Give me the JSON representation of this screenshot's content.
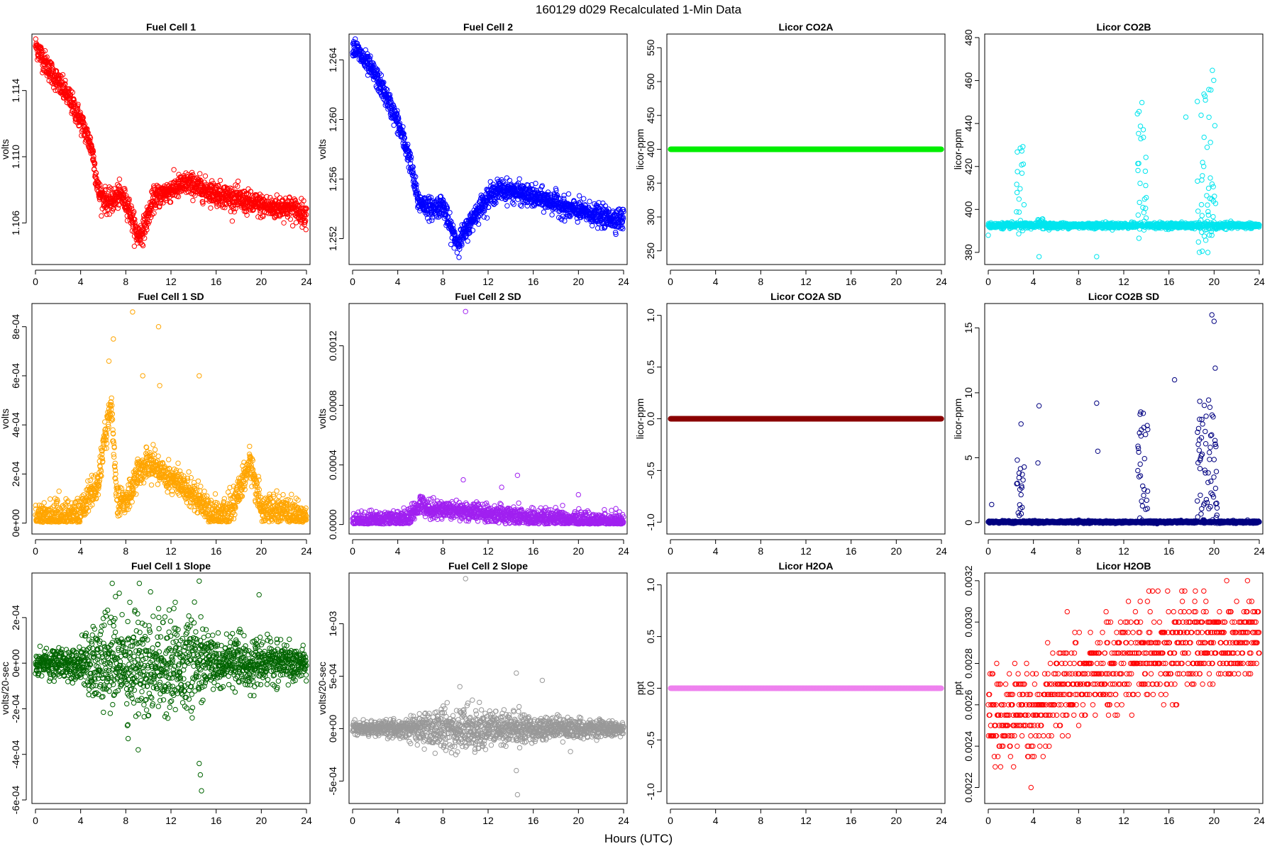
{
  "figure": {
    "title": "160129   d029   Recalculated 1-Min Data",
    "xlabel": "Hours (UTC)"
  },
  "chart_data": [
    {
      "id": "fc1",
      "type": "scatter",
      "title": "Fuel Cell 1",
      "ylabel": "volts",
      "color": "#ff0000",
      "xlim": [
        0,
        24
      ],
      "ylim": [
        1.1037,
        1.1172
      ],
      "xticks": [
        0,
        4,
        8,
        12,
        16,
        20,
        24
      ],
      "xtick_labels": [
        "0",
        "4",
        "8",
        "12",
        "16",
        "20",
        "24"
      ],
      "yticks": [
        1.106,
        1.11,
        1.114
      ],
      "ytick_labels": [
        "1.106",
        "1.110",
        "1.114"
      ],
      "series": {
        "kind": "trend",
        "noise": 0.00035,
        "n": 1440,
        "knots": [
          [
            0,
            1.1168
          ],
          [
            1,
            1.1155
          ],
          [
            2,
            1.1145
          ],
          [
            3,
            1.1135
          ],
          [
            4,
            1.1122
          ],
          [
            5,
            1.1105
          ],
          [
            5.6,
            1.1078
          ],
          [
            6.5,
            1.1072
          ],
          [
            7.5,
            1.1077
          ],
          [
            8.2,
            1.1071
          ],
          [
            9,
            1.1052
          ],
          [
            9.5,
            1.1055
          ],
          [
            10.5,
            1.1075
          ],
          [
            12,
            1.108
          ],
          [
            13.5,
            1.1084
          ],
          [
            15,
            1.108
          ],
          [
            16,
            1.1078
          ],
          [
            17.5,
            1.1075
          ],
          [
            19,
            1.1072
          ],
          [
            21,
            1.1069
          ],
          [
            22,
            1.107
          ],
          [
            23,
            1.1068
          ],
          [
            24,
            1.1065
          ]
        ]
      }
    },
    {
      "id": "fc2",
      "type": "scatter",
      "title": "Fuel Cell 2",
      "ylabel": "volts",
      "color": "#0000ff",
      "xlim": [
        0,
        24
      ],
      "ylim": [
        1.2505,
        1.2655
      ],
      "xticks": [
        0,
        4,
        8,
        12,
        16,
        20,
        24
      ],
      "xtick_labels": [
        "0",
        "4",
        "8",
        "12",
        "16",
        "20",
        "24"
      ],
      "yticks": [
        1.252,
        1.256,
        1.26,
        1.264
      ],
      "ytick_labels": [
        "1.252",
        "1.256",
        "1.260",
        "1.264"
      ],
      "series": {
        "kind": "trend",
        "noise": 0.00035,
        "n": 1440,
        "knots": [
          [
            0,
            1.265
          ],
          [
            1,
            1.264
          ],
          [
            2,
            1.263
          ],
          [
            3,
            1.2615
          ],
          [
            4,
            1.2598
          ],
          [
            5,
            1.2575
          ],
          [
            5.8,
            1.2545
          ],
          [
            7,
            1.254
          ],
          [
            8,
            1.2543
          ],
          [
            8.5,
            1.253
          ],
          [
            9.3,
            1.2517
          ],
          [
            10,
            1.2525
          ],
          [
            11,
            1.2538
          ],
          [
            12,
            1.2548
          ],
          [
            13,
            1.2553
          ],
          [
            14,
            1.2552
          ],
          [
            15,
            1.255
          ],
          [
            16,
            1.2548
          ],
          [
            17,
            1.2546
          ],
          [
            18,
            1.2544
          ],
          [
            19,
            1.254
          ],
          [
            21,
            1.2537
          ],
          [
            22.5,
            1.2534
          ],
          [
            24,
            1.2533
          ]
        ]
      }
    },
    {
      "id": "co2a",
      "type": "scatter",
      "title": "Licor CO2A",
      "ylabel": "licor-ppm",
      "color": "#00ee00",
      "xlim": [
        0,
        24
      ],
      "ylim": [
        235,
        565
      ],
      "xticks": [
        0,
        4,
        8,
        12,
        16,
        20,
        24
      ],
      "xtick_labels": [
        "0",
        "4",
        "8",
        "12",
        "16",
        "20",
        "24"
      ],
      "yticks": [
        250,
        300,
        350,
        400,
        450,
        500,
        550
      ],
      "ytick_labels": [
        "250",
        "300",
        "350",
        "400",
        "450",
        "500",
        "550"
      ],
      "series": {
        "kind": "flat",
        "value": 400,
        "n": 1440
      }
    },
    {
      "id": "co2b",
      "type": "scatter",
      "title": "Licor CO2B",
      "ylabel": "licor-ppm",
      "color": "#00e5ee",
      "xlim": [
        0,
        24
      ],
      "ylim": [
        376,
        480
      ],
      "xticks": [
        0,
        4,
        8,
        12,
        16,
        20,
        24
      ],
      "xtick_labels": [
        "0",
        "4",
        "8",
        "12",
        "16",
        "20",
        "24"
      ],
      "yticks": [
        380,
        400,
        420,
        440,
        460,
        480
      ],
      "ytick_labels": [
        "380",
        "400",
        "420",
        "440",
        "460",
        "480"
      ],
      "series": {
        "kind": "baseline_spikes",
        "base": 392.5,
        "noise": 0.6,
        "n": 1440,
        "sign": "both",
        "spikes": [
          [
            2.5,
            3.2,
            430
          ],
          [
            4.4,
            4.9,
            396
          ],
          [
            13.2,
            14,
            452
          ],
          [
            18.5,
            20.2,
            466
          ]
        ],
        "outliers": [
          [
            0,
            388
          ],
          [
            4.5,
            378
          ],
          [
            9.6,
            378
          ],
          [
            19.8,
            388
          ],
          [
            17.5,
            443
          ]
        ]
      }
    },
    {
      "id": "fc1sd",
      "type": "scatter",
      "title": "Fuel Cell 1 SD",
      "ylabel": "volts",
      "color": "#ffa500",
      "xlim": [
        0,
        24
      ],
      "ylim": [
        -3e-05,
        0.00088
      ],
      "xticks": [
        0,
        4,
        8,
        12,
        16,
        20,
        24
      ],
      "xtick_labels": [
        "0",
        "4",
        "8",
        "12",
        "16",
        "20",
        "24"
      ],
      "yticks": [
        0,
        0.0002,
        0.0004,
        0.0006,
        0.0008
      ],
      "ytick_labels": [
        "0e+00",
        "2e-04",
        "4e-04",
        "6e-04",
        "8e-04"
      ],
      "series": {
        "kind": "trend",
        "noise": 3e-05,
        "n": 1440,
        "positive": true,
        "knots": [
          [
            0,
            2e-05
          ],
          [
            4,
            4e-05
          ],
          [
            4.5,
            0.0001
          ],
          [
            5.5,
            0.00015
          ],
          [
            6,
            0.0003
          ],
          [
            6.7,
            0.0005
          ],
          [
            7.2,
            0.0001
          ],
          [
            8,
            8e-05
          ],
          [
            9,
            0.0002
          ],
          [
            10,
            0.00025
          ],
          [
            11.5,
            0.0002
          ],
          [
            13,
            0.00015
          ],
          [
            14.5,
            0.0001
          ],
          [
            15.5,
            4e-05
          ],
          [
            17,
            3e-05
          ],
          [
            18,
            0.00012
          ],
          [
            19,
            0.00025
          ],
          [
            20,
            6e-05
          ],
          [
            22,
            4e-05
          ],
          [
            24,
            2e-05
          ]
        ],
        "outliers": [
          [
            6.5,
            0.00066
          ],
          [
            6.9,
            0.00075
          ],
          [
            8.6,
            0.00086
          ],
          [
            10.9,
            0.0008
          ],
          [
            14.5,
            0.0006
          ],
          [
            9.5,
            0.0006
          ],
          [
            11,
            0.00056
          ]
        ]
      }
    },
    {
      "id": "fc2sd",
      "type": "scatter",
      "title": "Fuel Cell 2 SD",
      "ylabel": "volts",
      "color": "#a020f0",
      "xlim": [
        0,
        24
      ],
      "ylim": [
        -4e-05,
        0.00146
      ],
      "xticks": [
        0,
        4,
        8,
        12,
        16,
        20,
        24
      ],
      "xtick_labels": [
        "0",
        "4",
        "8",
        "12",
        "16",
        "20",
        "24"
      ],
      "yticks": [
        0,
        0.0004,
        0.0008,
        0.0012
      ],
      "ytick_labels": [
        "0.0000",
        "0.0004",
        "0.0008",
        "0.0012"
      ],
      "series": {
        "kind": "trend",
        "noise": 3e-05,
        "n": 1440,
        "positive": true,
        "knots": [
          [
            0,
            2e-05
          ],
          [
            5,
            4e-05
          ],
          [
            6,
            0.00014
          ],
          [
            7,
            0.0001
          ],
          [
            9,
            0.0001
          ],
          [
            10,
            9e-05
          ],
          [
            12,
            7e-05
          ],
          [
            14,
            6e-05
          ],
          [
            16,
            4e-05
          ],
          [
            20,
            3e-05
          ],
          [
            24,
            2e-05
          ]
        ],
        "outliers": [
          [
            10,
            0.00143
          ],
          [
            9.8,
            0.0003
          ],
          [
            14.6,
            0.00033
          ],
          [
            13.2,
            0.00025
          ],
          [
            20,
            0.0002
          ]
        ]
      }
    },
    {
      "id": "co2asd",
      "type": "scatter",
      "title": "Licor CO2A SD",
      "ylabel": "licor-ppm",
      "color": "#8b0000",
      "xlim": [
        0,
        24
      ],
      "ylim": [
        -1.08,
        1.08
      ],
      "xticks": [
        0,
        4,
        8,
        12,
        16,
        20,
        24
      ],
      "xtick_labels": [
        "0",
        "4",
        "8",
        "12",
        "16",
        "20",
        "24"
      ],
      "yticks": [
        -1.0,
        -0.5,
        0.0,
        0.5,
        1.0
      ],
      "ytick_labels": [
        "-1.0",
        "-0.5",
        "0.0",
        "0.5",
        "1.0"
      ],
      "series": {
        "kind": "flat",
        "value": 0,
        "n": 1440
      }
    },
    {
      "id": "co2bsd",
      "type": "scatter",
      "title": "Licor CO2B SD",
      "ylabel": "licor-ppm",
      "color": "#000080",
      "xlim": [
        0,
        24
      ],
      "ylim": [
        -0.6,
        16.6
      ],
      "xticks": [
        0,
        4,
        8,
        12,
        16,
        20,
        24
      ],
      "xtick_labels": [
        "0",
        "4",
        "8",
        "12",
        "16",
        "20",
        "24"
      ],
      "yticks": [
        0,
        5,
        10,
        15
      ],
      "ytick_labels": [
        "0",
        "5",
        "10",
        "15"
      ],
      "series": {
        "kind": "baseline_spikes",
        "base": 0.05,
        "noise": 0.04,
        "n": 1440,
        "sign": "up",
        "spikes": [
          [
            2.5,
            3.2,
            5
          ],
          [
            13.2,
            14.2,
            9
          ],
          [
            18.5,
            20.3,
            10
          ]
        ],
        "outliers": [
          [
            2.9,
            7.6
          ],
          [
            4.5,
            9
          ],
          [
            4.4,
            4.6
          ],
          [
            9.6,
            9.2
          ],
          [
            9.7,
            5.5
          ],
          [
            16.5,
            11
          ],
          [
            19.8,
            16
          ],
          [
            20,
            15.5
          ],
          [
            20.1,
            11.9
          ],
          [
            0.3,
            1.4
          ]
        ]
      }
    },
    {
      "id": "fc1slope",
      "type": "scatter",
      "title": "Fuel Cell 1 Slope",
      "ylabel": "volts/20-sec",
      "color": "#006400",
      "xlim": [
        0,
        24
      ],
      "ylim": [
        -0.0006,
        0.00038
      ],
      "xticks": [
        0,
        4,
        8,
        12,
        16,
        20,
        24
      ],
      "xtick_labels": [
        "0",
        "4",
        "8",
        "12",
        "16",
        "20",
        "24"
      ],
      "yticks": [
        -0.0006,
        -0.0004,
        -0.0002,
        0,
        0.0002
      ],
      "ytick_labels": [
        "-6e-04",
        "-4e-04",
        "-2e-04",
        "0e+00",
        "2e-04"
      ],
      "series": {
        "kind": "noise",
        "center": 0,
        "n": 1440,
        "sd_knots": [
          [
            0,
            3e-05
          ],
          [
            4,
            4e-05
          ],
          [
            5.5,
            9e-05
          ],
          [
            8,
            0.00012
          ],
          [
            10,
            0.00011
          ],
          [
            12,
            0.0001
          ],
          [
            14,
            9e-05
          ],
          [
            16,
            6e-05
          ],
          [
            19,
            5e-05
          ],
          [
            22,
            4e-05
          ],
          [
            24,
            3e-05
          ]
        ],
        "outliers": [
          [
            6.8,
            0.00035
          ],
          [
            9.2,
            0.00035
          ],
          [
            14.5,
            0.00036
          ],
          [
            9.1,
            -0.00038
          ],
          [
            14.5,
            -0.00044
          ],
          [
            14.6,
            -0.00049
          ],
          [
            14.7,
            -0.00056
          ],
          [
            19.8,
            0.0003
          ]
        ]
      }
    },
    {
      "id": "fc2slope",
      "type": "scatter",
      "title": "Fuel Cell 2 Slope",
      "ylabel": "volts/20-sec",
      "color": "#999999",
      "xlim": [
        0,
        24
      ],
      "ylim": [
        -0.00068,
        0.00145
      ],
      "xticks": [
        0,
        4,
        8,
        12,
        16,
        20,
        24
      ],
      "xtick_labels": [
        "0",
        "4",
        "8",
        "12",
        "16",
        "20",
        "24"
      ],
      "yticks": [
        -0.0005,
        0,
        0.0005,
        0.001
      ],
      "ytick_labels": [
        "-5e-04",
        "0e+00",
        "5e-04",
        "1e-03"
      ],
      "series": {
        "kind": "noise",
        "center": 0,
        "n": 1440,
        "sd_knots": [
          [
            0,
            3e-05
          ],
          [
            4,
            4e-05
          ],
          [
            5.5,
            7e-05
          ],
          [
            8,
            0.0001
          ],
          [
            10,
            0.0001
          ],
          [
            12,
            9e-05
          ],
          [
            15,
            7e-05
          ],
          [
            18,
            5e-05
          ],
          [
            24,
            3e-05
          ]
        ],
        "outliers": [
          [
            10,
            0.00143
          ],
          [
            14.5,
            0.00053
          ],
          [
            16.8,
            0.00046
          ],
          [
            14.6,
            -0.00063
          ],
          [
            14.5,
            -0.0004
          ],
          [
            9.5,
            0.0004
          ]
        ]
      }
    },
    {
      "id": "h2oa",
      "type": "scatter",
      "title": "Licor H2OA",
      "ylabel": "ppt",
      "color": "#ee82ee",
      "xlim": [
        0,
        24
      ],
      "ylim": [
        -1.08,
        1.08
      ],
      "xticks": [
        0,
        4,
        8,
        12,
        16,
        20,
        24
      ],
      "xtick_labels": [
        "0",
        "4",
        "8",
        "12",
        "16",
        "20",
        "24"
      ],
      "yticks": [
        -1.0,
        -0.5,
        0.0,
        0.5,
        1.0
      ],
      "ytick_labels": [
        "-1.0",
        "-0.5",
        "0.0",
        "0.5",
        "1.0"
      ],
      "series": {
        "kind": "flat",
        "value": 0,
        "n": 1440
      }
    },
    {
      "id": "h2ob",
      "type": "scatter",
      "title": "Licor H2OB",
      "ylabel": "ppt",
      "color": "#ff0000",
      "xlim": [
        0,
        24
      ],
      "ylim": [
        0.00214,
        0.00322
      ],
      "xticks": [
        0,
        4,
        8,
        12,
        16,
        20,
        24
      ],
      "xtick_labels": [
        "0",
        "4",
        "8",
        "12",
        "16",
        "20",
        "24"
      ],
      "yticks": [
        0.0022,
        0.0024,
        0.0026,
        0.0028,
        0.003,
        0.0032
      ],
      "ytick_labels": [
        "0.0022",
        "0.0024",
        "0.0026",
        "0.0028",
        "0.0030",
        "0.0032"
      ],
      "series": {
        "kind": "trend",
        "noise": 0.00011,
        "n": 900,
        "quantize": 5e-05,
        "knots": [
          [
            0,
            0.00255
          ],
          [
            2,
            0.00253
          ],
          [
            4,
            0.00252
          ],
          [
            5,
            0.00262
          ],
          [
            6,
            0.00268
          ],
          [
            8,
            0.00272
          ],
          [
            10,
            0.00276
          ],
          [
            12,
            0.00281
          ],
          [
            14,
            0.00285
          ],
          [
            16,
            0.00287
          ],
          [
            18,
            0.00289
          ],
          [
            20,
            0.00291
          ],
          [
            22,
            0.00292
          ],
          [
            24,
            0.00292
          ]
        ]
      }
    }
  ]
}
